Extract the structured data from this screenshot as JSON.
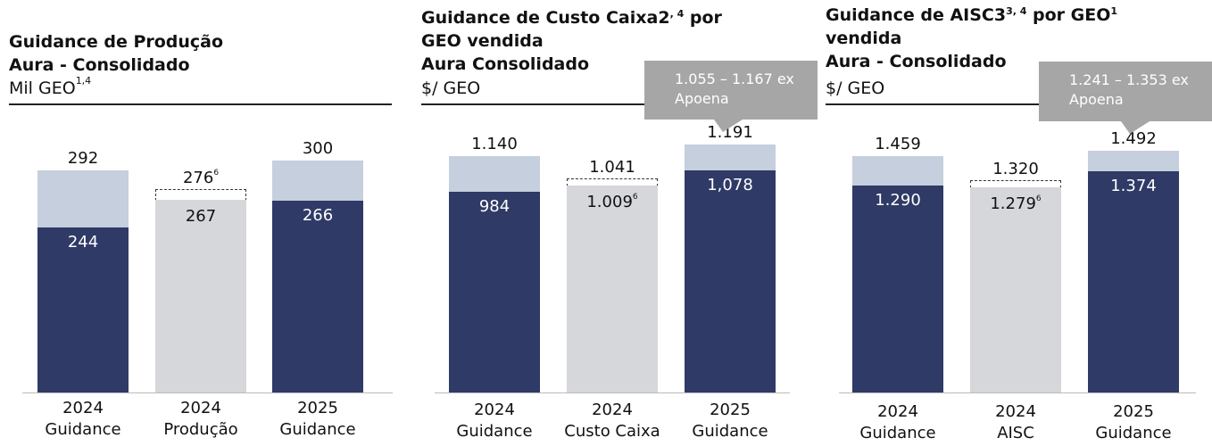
{
  "colors": {
    "base": "#2f3a66",
    "range": "#c5cfdd",
    "actual": "#d5d7db",
    "callout": "#a6a6a6"
  },
  "chart_data": [
    {
      "type": "bar",
      "title_lines": [
        "Guidance de Produção",
        "Aura - Consolidado"
      ],
      "unit": "Mil GEO",
      "unit_sup": "1,4",
      "categories": [
        [
          "2024",
          "Guidance"
        ],
        [
          "2024",
          "Produção"
        ],
        [
          "2025",
          "Guidance"
        ]
      ],
      "series": [
        {
          "name": "low",
          "values": [
            244,
            267,
            266
          ],
          "labels": [
            "244",
            "267",
            "266"
          ]
        },
        {
          "name": "high",
          "values": [
            292,
            276,
            300
          ],
          "labels": [
            "292",
            "276",
            "300"
          ]
        }
      ],
      "actual_index": 1,
      "actual_label_sup": "6",
      "callout": null,
      "ylim": [
        105,
        330
      ]
    },
    {
      "type": "bar",
      "title_lines": [
        "Guidance de Custo Caixa2",
        "GEO vendida",
        "Aura Consolidado"
      ],
      "title_sups": [
        ", 4",
        " 1"
      ],
      "title_after": [
        " por",
        ""
      ],
      "unit": "$/ GEO",
      "categories": [
        [
          "2024",
          "Guidance"
        ],
        [
          "2024",
          "Custo Caixa"
        ],
        [
          "2025",
          "Guidance"
        ]
      ],
      "series": [
        {
          "name": "low",
          "values": [
            984,
            1009,
            1078
          ],
          "labels": [
            "984",
            "1.009",
            "1,078"
          ]
        },
        {
          "name": "high",
          "values": [
            1140,
            1041,
            1191
          ],
          "labels": [
            "1.140",
            "1.041",
            "1.191"
          ]
        }
      ],
      "actual_index": 1,
      "actual_label_sup": "6",
      "callout": [
        "1.055 – 1.167 ex",
        "Apoena"
      ],
      "ylim": [
        106,
        1276
      ]
    },
    {
      "type": "bar",
      "title_lines": [
        "Guidance de AISC3",
        "vendida",
        "Aura - Consolidado"
      ],
      "title_sups": [
        "3, 4",
        "1"
      ],
      "title_after": [
        " por GEO",
        ""
      ],
      "unit": "$/ GEO",
      "categories": [
        [
          "2024",
          "Guidance"
        ],
        [
          "2024",
          "AISC"
        ],
        [
          "2025",
          "Guidance"
        ]
      ],
      "series": [
        {
          "name": "low",
          "values": [
            1290,
            1279,
            1374
          ],
          "labels": [
            "1.290",
            "1.279",
            "1.374"
          ]
        },
        {
          "name": "high",
          "values": [
            1459,
            1320,
            1492
          ],
          "labels": [
            "1.459",
            "1.320",
            "1.492"
          ]
        }
      ],
      "actual_index": 1,
      "actual_label_sup": "6",
      "callout": [
        "1.241 – 1.353 ex",
        "Apoena"
      ],
      "ylim": [
        102,
        1638
      ]
    }
  ]
}
